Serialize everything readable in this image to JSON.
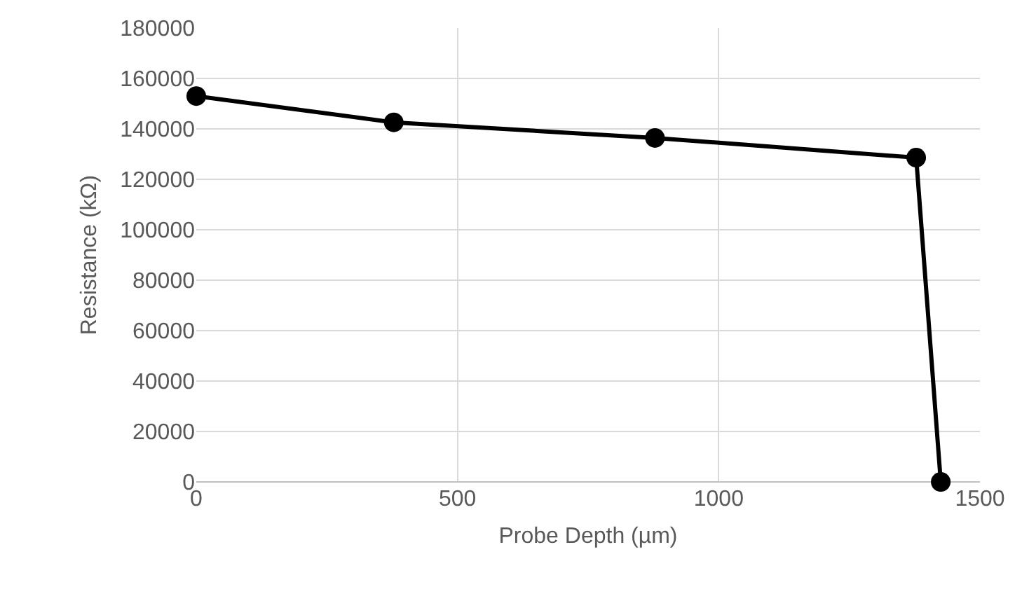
{
  "chart_data": {
    "type": "line",
    "xlabel": "Probe Depth (µm)",
    "ylabel": "Resistance (kΩ)",
    "x": [
      0,
      378,
      878,
      1378,
      1425
    ],
    "series": [
      {
        "color": "#000000",
        "values": [
          153000,
          142600,
          136400,
          128600,
          0
        ]
      }
    ],
    "xlim": [
      0,
      1500
    ],
    "xticks": [
      0,
      500,
      1000,
      1500
    ],
    "ylim": [
      0,
      180000
    ],
    "yticks": [
      0,
      20000,
      40000,
      60000,
      80000,
      100000,
      120000,
      140000,
      160000,
      180000
    ],
    "grid": true,
    "marker": "circle",
    "line_style": "solid"
  }
}
